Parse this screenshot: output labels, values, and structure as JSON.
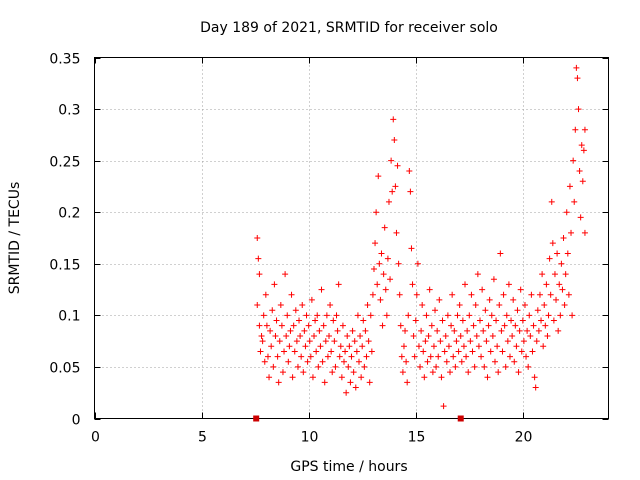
{
  "chart_data": {
    "type": "scatter",
    "title": "Day 189 of 2021, SRMTID for receiver solo",
    "xlabel": "GPS time / hours",
    "ylabel": "SRMTID / TECUs",
    "xlim": [
      0,
      24
    ],
    "ylim": [
      0,
      0.35
    ],
    "xticks": [
      0,
      5,
      10,
      15,
      20
    ],
    "xtick_labels": [
      "0",
      "5",
      "10",
      "15",
      "20"
    ],
    "yticks": [
      0,
      0.05,
      0.1,
      0.15,
      0.2,
      0.25,
      0.3,
      0.35
    ],
    "ytick_labels": [
      "0",
      "0.05",
      "0.1",
      "0.15",
      "0.2",
      "0.25",
      "0.3",
      "0.35"
    ],
    "grid": true,
    "marker": "plus",
    "color": "#ff0000",
    "baseline_markers": [
      7.55,
      17.1
    ],
    "series": [
      {
        "name": "SRMTID",
        "points": [
          [
            7.6,
            0.175
          ],
          [
            7.65,
            0.155
          ],
          [
            7.7,
            0.14
          ],
          [
            7.6,
            0.11
          ],
          [
            7.7,
            0.09
          ],
          [
            7.8,
            0.08
          ],
          [
            7.75,
            0.065
          ],
          [
            7.9,
            0.1
          ],
          [
            7.85,
            0.075
          ],
          [
            7.95,
            0.055
          ],
          [
            8.0,
            0.12
          ],
          [
            8.05,
            0.09
          ],
          [
            8.1,
            0.06
          ],
          [
            8.15,
            0.04
          ],
          [
            8.2,
            0.085
          ],
          [
            8.25,
            0.07
          ],
          [
            8.3,
            0.105
          ],
          [
            8.35,
            0.05
          ],
          [
            8.4,
            0.13
          ],
          [
            8.45,
            0.08
          ],
          [
            8.5,
            0.095
          ],
          [
            8.55,
            0.06
          ],
          [
            8.6,
            0.035
          ],
          [
            8.65,
            0.075
          ],
          [
            8.7,
            0.11
          ],
          [
            8.75,
            0.09
          ],
          [
            8.8,
            0.045
          ],
          [
            8.85,
            0.065
          ],
          [
            8.9,
            0.14
          ],
          [
            8.95,
            0.08
          ],
          [
            9.0,
            0.1
          ],
          [
            9.05,
            0.055
          ],
          [
            9.1,
            0.07
          ],
          [
            9.15,
            0.085
          ],
          [
            9.2,
            0.12
          ],
          [
            9.25,
            0.04
          ],
          [
            9.3,
            0.09
          ],
          [
            9.35,
            0.065
          ],
          [
            9.4,
            0.105
          ],
          [
            9.45,
            0.075
          ],
          [
            9.5,
            0.05
          ],
          [
            9.55,
            0.095
          ],
          [
            9.6,
            0.08
          ],
          [
            9.65,
            0.06
          ],
          [
            9.7,
            0.11
          ],
          [
            9.75,
            0.045
          ],
          [
            9.8,
            0.085
          ],
          [
            9.85,
            0.07
          ],
          [
            9.9,
            0.1
          ],
          [
            9.95,
            0.055
          ],
          [
            10.0,
            0.09
          ],
          [
            10.05,
            0.075
          ],
          [
            10.1,
            0.06
          ],
          [
            10.15,
            0.115
          ],
          [
            10.2,
            0.04
          ],
          [
            10.25,
            0.08
          ],
          [
            10.3,
            0.095
          ],
          [
            10.35,
            0.065
          ],
          [
            10.4,
            0.1
          ],
          [
            10.45,
            0.05
          ],
          [
            10.5,
            0.085
          ],
          [
            10.55,
            0.07
          ],
          [
            10.6,
            0.125
          ],
          [
            10.65,
            0.055
          ],
          [
            10.7,
            0.09
          ],
          [
            10.75,
            0.035
          ],
          [
            10.8,
            0.075
          ],
          [
            10.85,
            0.1
          ],
          [
            10.9,
            0.06
          ],
          [
            10.95,
            0.08
          ],
          [
            11.0,
            0.11
          ],
          [
            11.05,
            0.065
          ],
          [
            11.1,
            0.045
          ],
          [
            11.15,
            0.095
          ],
          [
            11.2,
            0.075
          ],
          [
            11.25,
            0.05
          ],
          [
            11.3,
            0.1
          ],
          [
            11.35,
            0.085
          ],
          [
            11.4,
            0.13
          ],
          [
            11.45,
            0.06
          ],
          [
            11.5,
            0.07
          ],
          [
            11.55,
            0.04
          ],
          [
            11.6,
            0.09
          ],
          [
            11.65,
            0.055
          ],
          [
            11.7,
            0.065
          ],
          [
            11.75,
            0.025
          ],
          [
            11.8,
            0.08
          ],
          [
            11.85,
            0.05
          ],
          [
            11.9,
            0.07
          ],
          [
            11.95,
            0.035
          ],
          [
            12.0,
            0.06
          ],
          [
            12.05,
            0.085
          ],
          [
            12.1,
            0.045
          ],
          [
            12.15,
            0.075
          ],
          [
            12.2,
            0.03
          ],
          [
            12.25,
            0.065
          ],
          [
            12.3,
            0.1
          ],
          [
            12.35,
            0.055
          ],
          [
            12.4,
            0.08
          ],
          [
            12.45,
            0.04
          ],
          [
            12.5,
            0.07
          ],
          [
            12.55,
            0.095
          ],
          [
            12.6,
            0.05
          ],
          [
            12.65,
            0.085
          ],
          [
            12.7,
            0.06
          ],
          [
            12.75,
            0.11
          ],
          [
            12.8,
            0.075
          ],
          [
            12.85,
            0.035
          ],
          [
            12.9,
            0.1
          ],
          [
            12.95,
            0.065
          ],
          [
            13.0,
            0.12
          ],
          [
            13.05,
            0.145
          ],
          [
            13.1,
            0.17
          ],
          [
            13.15,
            0.2
          ],
          [
            13.2,
            0.13
          ],
          [
            13.25,
            0.235
          ],
          [
            13.3,
            0.15
          ],
          [
            13.35,
            0.115
          ],
          [
            13.4,
            0.16
          ],
          [
            13.45,
            0.09
          ],
          [
            13.5,
            0.14
          ],
          [
            13.55,
            0.185
          ],
          [
            13.6,
            0.125
          ],
          [
            13.65,
            0.1
          ],
          [
            13.7,
            0.155
          ],
          [
            13.75,
            0.21
          ],
          [
            13.8,
            0.135
          ],
          [
            13.85,
            0.25
          ],
          [
            13.9,
            0.22
          ],
          [
            13.95,
            0.29
          ],
          [
            14.0,
            0.27
          ],
          [
            14.05,
            0.225
          ],
          [
            14.1,
            0.18
          ],
          [
            14.15,
            0.245
          ],
          [
            14.2,
            0.15
          ],
          [
            14.25,
            0.12
          ],
          [
            14.3,
            0.09
          ],
          [
            14.35,
            0.06
          ],
          [
            14.4,
            0.045
          ],
          [
            14.45,
            0.07
          ],
          [
            14.5,
            0.085
          ],
          [
            14.55,
            0.055
          ],
          [
            14.6,
            0.035
          ],
          [
            14.65,
            0.1
          ],
          [
            14.7,
            0.24
          ],
          [
            14.75,
            0.22
          ],
          [
            14.8,
            0.165
          ],
          [
            14.85,
            0.13
          ],
          [
            14.9,
            0.08
          ],
          [
            14.95,
            0.06
          ],
          [
            15.0,
            0.095
          ],
          [
            15.05,
            0.12
          ],
          [
            15.1,
            0.15
          ],
          [
            15.15,
            0.07
          ],
          [
            15.2,
            0.05
          ],
          [
            15.25,
            0.085
          ],
          [
            15.3,
            0.11
          ],
          [
            15.35,
            0.065
          ],
          [
            15.4,
            0.04
          ],
          [
            15.45,
            0.075
          ],
          [
            15.5,
            0.1
          ],
          [
            15.55,
            0.055
          ],
          [
            15.6,
            0.08
          ],
          [
            15.65,
            0.125
          ],
          [
            15.7,
            0.06
          ],
          [
            15.75,
            0.09
          ],
          [
            15.8,
            0.045
          ],
          [
            15.85,
            0.07
          ],
          [
            15.9,
            0.105
          ],
          [
            15.95,
            0.05
          ],
          [
            16.0,
            0.085
          ],
          [
            16.05,
            0.06
          ],
          [
            16.1,
            0.115
          ],
          [
            16.15,
            0.075
          ],
          [
            16.2,
            0.04
          ],
          [
            16.25,
            0.095
          ],
          [
            16.3,
            0.012
          ],
          [
            16.35,
            0.065
          ],
          [
            16.4,
            0.08
          ],
          [
            16.45,
            0.055
          ],
          [
            16.5,
            0.1
          ],
          [
            16.55,
            0.07
          ],
          [
            16.6,
            0.045
          ],
          [
            16.65,
            0.09
          ],
          [
            16.7,
            0.12
          ],
          [
            16.75,
            0.06
          ],
          [
            16.8,
            0.085
          ],
          [
            16.85,
            0.05
          ],
          [
            16.9,
            0.075
          ],
          [
            16.95,
            0.1
          ],
          [
            17.0,
            0.065
          ],
          [
            17.05,
            0.11
          ],
          [
            17.1,
            0.08
          ],
          [
            17.15,
            0.055
          ],
          [
            17.2,
            0.095
          ],
          [
            17.25,
            0.07
          ],
          [
            17.3,
            0.13
          ],
          [
            17.35,
            0.06
          ],
          [
            17.4,
            0.085
          ],
          [
            17.45,
            0.045
          ],
          [
            17.5,
            0.1
          ],
          [
            17.55,
            0.075
          ],
          [
            17.6,
            0.12
          ],
          [
            17.65,
            0.065
          ],
          [
            17.7,
            0.09
          ],
          [
            17.75,
            0.05
          ],
          [
            17.8,
            0.11
          ],
          [
            17.85,
            0.08
          ],
          [
            17.9,
            0.14
          ],
          [
            17.95,
            0.07
          ],
          [
            18.0,
            0.095
          ],
          [
            18.05,
            0.06
          ],
          [
            18.1,
            0.125
          ],
          [
            18.15,
            0.085
          ],
          [
            18.2,
            0.05
          ],
          [
            18.25,
            0.105
          ],
          [
            18.3,
            0.075
          ],
          [
            18.35,
            0.04
          ],
          [
            18.4,
            0.09
          ],
          [
            18.45,
            0.115
          ],
          [
            18.5,
            0.065
          ],
          [
            18.55,
            0.1
          ],
          [
            18.6,
            0.08
          ],
          [
            18.65,
            0.135
          ],
          [
            18.7,
            0.055
          ],
          [
            18.75,
            0.095
          ],
          [
            18.8,
            0.07
          ],
          [
            18.85,
            0.045
          ],
          [
            18.9,
            0.11
          ],
          [
            18.95,
            0.16
          ],
          [
            19.0,
            0.085
          ],
          [
            19.05,
            0.065
          ],
          [
            19.1,
            0.12
          ],
          [
            19.15,
            0.09
          ],
          [
            19.2,
            0.05
          ],
          [
            19.25,
            0.1
          ],
          [
            19.3,
            0.075
          ],
          [
            19.35,
            0.13
          ],
          [
            19.4,
            0.06
          ],
          [
            19.45,
            0.095
          ],
          [
            19.5,
            0.08
          ],
          [
            19.55,
            0.115
          ],
          [
            19.6,
            0.055
          ],
          [
            19.65,
            0.09
          ],
          [
            19.7,
            0.07
          ],
          [
            19.75,
            0.105
          ],
          [
            19.8,
            0.045
          ],
          [
            19.85,
            0.085
          ],
          [
            19.9,
            0.125
          ],
          [
            19.95,
            0.065
          ],
          [
            20.0,
            0.095
          ],
          [
            20.05,
            0.075
          ],
          [
            20.1,
            0.11
          ],
          [
            20.15,
            0.06
          ],
          [
            20.2,
            0.085
          ],
          [
            20.25,
            0.05
          ],
          [
            20.3,
            0.1
          ],
          [
            20.35,
            0.08
          ],
          [
            20.4,
            0.12
          ],
          [
            20.45,
            0.065
          ],
          [
            20.5,
            0.09
          ],
          [
            20.55,
            0.04
          ],
          [
            20.6,
            0.03
          ],
          [
            20.65,
            0.075
          ],
          [
            20.7,
            0.105
          ],
          [
            20.75,
            0.085
          ],
          [
            20.8,
            0.12
          ],
          [
            20.85,
            0.095
          ],
          [
            20.9,
            0.14
          ],
          [
            20.95,
            0.07
          ],
          [
            21.0,
            0.11
          ],
          [
            21.05,
            0.09
          ],
          [
            21.1,
            0.13
          ],
          [
            21.15,
            0.08
          ],
          [
            21.2,
            0.1
          ],
          [
            21.25,
            0.155
          ],
          [
            21.3,
            0.12
          ],
          [
            21.35,
            0.21
          ],
          [
            21.4,
            0.17
          ],
          [
            21.45,
            0.095
          ],
          [
            21.5,
            0.14
          ],
          [
            21.55,
            0.115
          ],
          [
            21.6,
            0.16
          ],
          [
            21.65,
            0.085
          ],
          [
            21.7,
            0.13
          ],
          [
            21.75,
            0.1
          ],
          [
            21.8,
            0.15
          ],
          [
            21.85,
            0.125
          ],
          [
            21.9,
            0.175
          ],
          [
            21.95,
            0.11
          ],
          [
            22.0,
            0.14
          ],
          [
            22.05,
            0.2
          ],
          [
            22.1,
            0.16
          ],
          [
            22.15,
            0.12
          ],
          [
            22.2,
            0.225
          ],
          [
            22.25,
            0.18
          ],
          [
            22.3,
            0.1
          ],
          [
            22.35,
            0.25
          ],
          [
            22.4,
            0.21
          ],
          [
            22.45,
            0.28
          ],
          [
            22.5,
            0.34
          ],
          [
            22.55,
            0.33
          ],
          [
            22.6,
            0.3
          ],
          [
            22.65,
            0.24
          ],
          [
            22.7,
            0.195
          ],
          [
            22.75,
            0.265
          ],
          [
            22.8,
            0.23
          ],
          [
            22.85,
            0.26
          ],
          [
            22.9,
            0.28
          ],
          [
            22.9,
            0.18
          ]
        ]
      }
    ]
  }
}
